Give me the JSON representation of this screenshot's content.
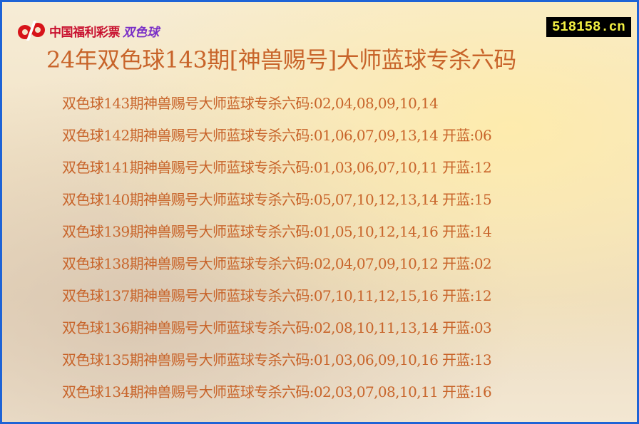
{
  "header": {
    "logo_text": "中国福利彩票",
    "logo_game": "双色球",
    "site": "518158.cn",
    "title": "24年双色球143期[神兽赐号]大师蓝球专杀六码"
  },
  "rows": [
    "双色球143期神兽赐号大师蓝球专杀六码:02,04,08,09,10,14",
    "双色球142期神兽赐号大师蓝球专杀六码:01,06,07,09,13,14 开蓝:06",
    "双色球141期神兽赐号大师蓝球专杀六码:01,03,06,07,10,11 开蓝:12",
    "双色球140期神兽赐号大师蓝球专杀六码:05,07,10,12,13,14 开蓝:15",
    "双色球139期神兽赐号大师蓝球专杀六码:01,05,10,12,14,16 开蓝:14",
    "双色球138期神兽赐号大师蓝球专杀六码:02,04,07,09,10,12 开蓝:02",
    "双色球137期神兽赐号大师蓝球专杀六码:07,10,11,12,15,16 开蓝:12",
    "双色球136期神兽赐号大师蓝球专杀六码:02,08,10,11,13,14 开蓝:03",
    "双色球135期神兽赐号大师蓝球专杀六码:01,03,06,09,10,16 开蓝:13",
    "双色球134期神兽赐号大师蓝球专杀六码:02,03,07,08,10,11 开蓝:16"
  ],
  "colors": {
    "text": "#c8642a",
    "border": "#1e63d6",
    "logo_red": "#c8102e"
  }
}
